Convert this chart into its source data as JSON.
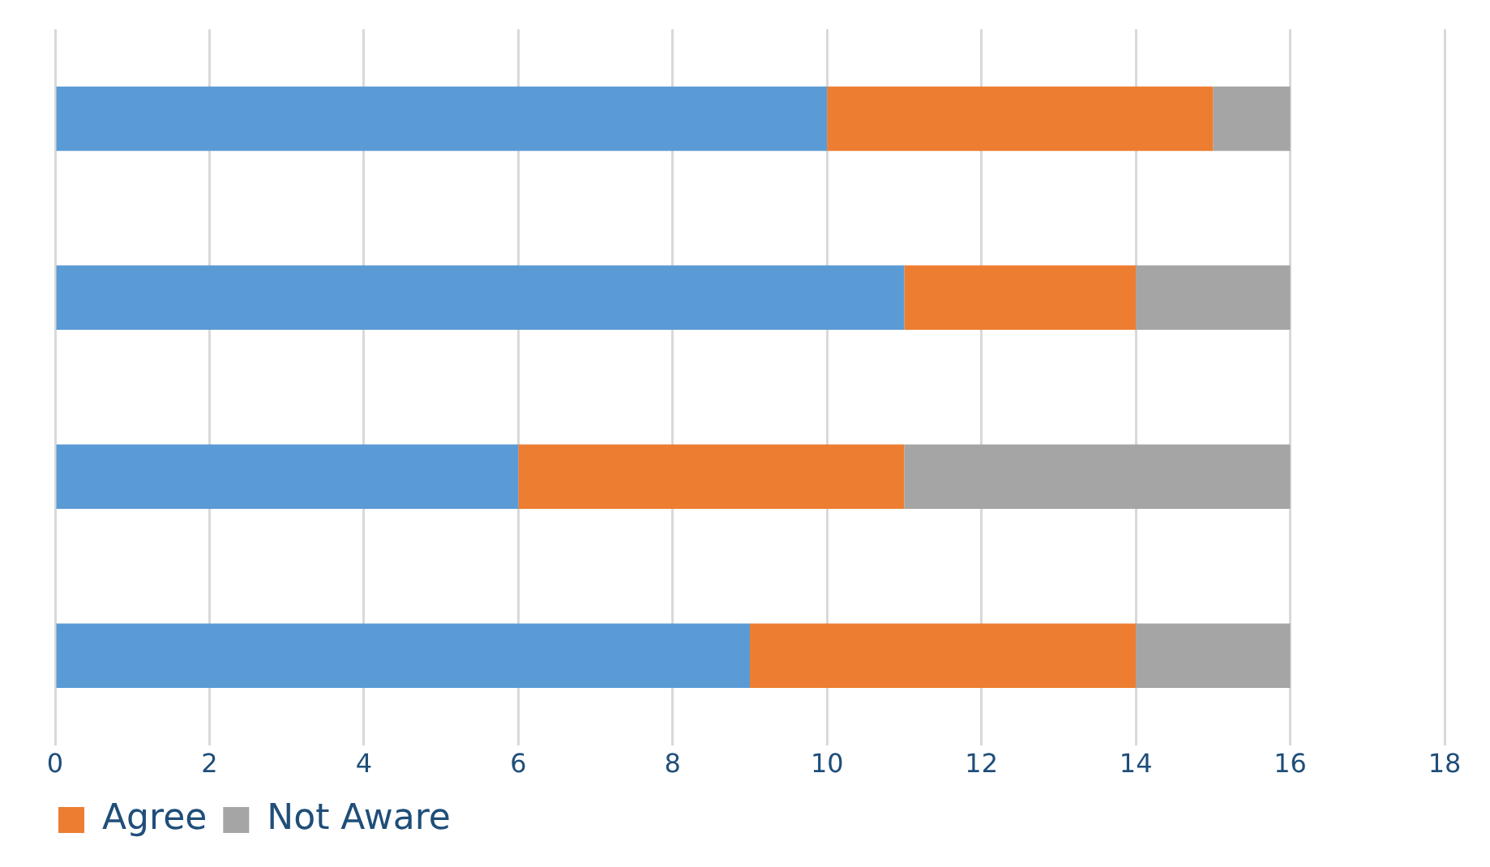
{
  "chart_data": {
    "type": "bar",
    "orientation": "horizontal",
    "stacked": true,
    "categories": [
      null,
      null,
      null,
      null
    ],
    "series": [
      {
        "color": "#5b9bd5",
        "values": [
          10,
          11,
          6,
          9
        ]
      },
      {
        "name": "Agree",
        "color": "#ed7d31",
        "values": [
          5,
          3,
          5,
          5
        ]
      },
      {
        "name": "Not Aware",
        "color": "#a5a5a5",
        "values": [
          1,
          2,
          5,
          2
        ]
      }
    ],
    "xlim": [
      0,
      18
    ],
    "xticks": [
      0,
      2,
      4,
      6,
      8,
      10,
      12,
      14,
      16,
      18
    ],
    "grid": "x",
    "legend": "bottom left"
  }
}
